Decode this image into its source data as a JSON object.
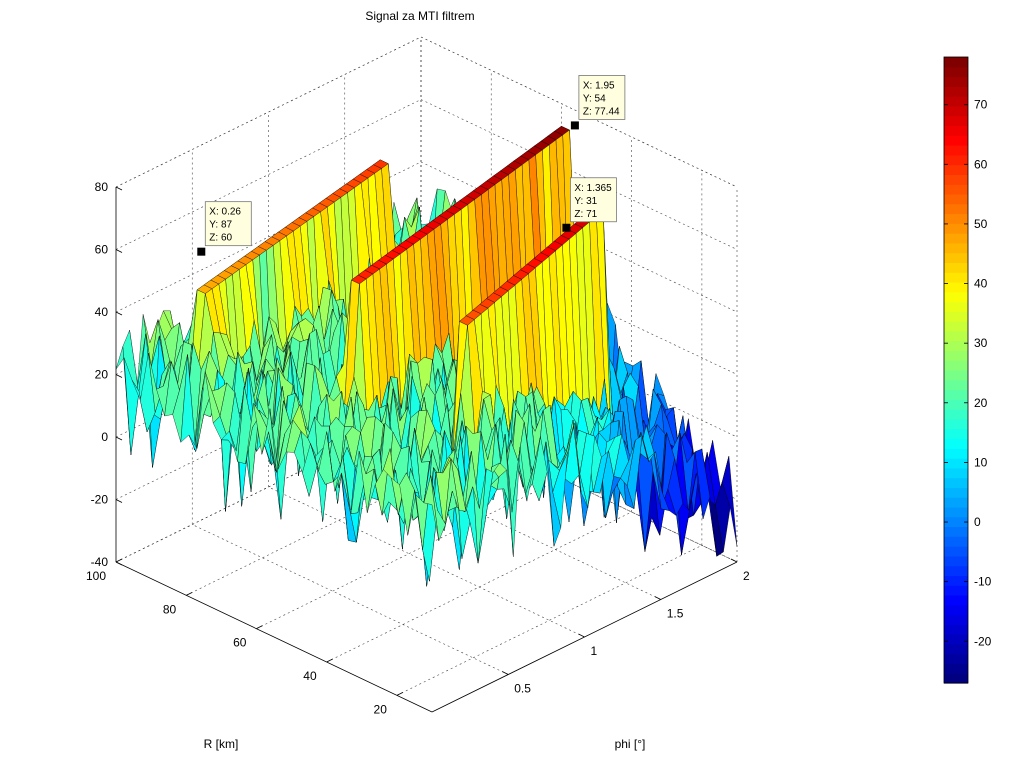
{
  "chart_data": {
    "type": "surface",
    "title": "Signal za MTI filtrem",
    "xlabel": "phi [°]",
    "ylabel": "R [km]",
    "zlabel": "",
    "xlim": [
      0,
      2
    ],
    "ylim": [
      10,
      100
    ],
    "zlim": [
      -40,
      80
    ],
    "xticks": [
      "0.5",
      "1",
      "1.5",
      "2"
    ],
    "yticks": [
      "20",
      "40",
      "60",
      "80",
      "100"
    ],
    "zticks": [
      "-40",
      "-20",
      "0",
      "20",
      "40",
      "60",
      "80"
    ],
    "grid": true,
    "colormap": "jet",
    "colorbar": {
      "range": [
        -27,
        78
      ],
      "ticks": [
        "-20",
        "-10",
        "0",
        "10",
        "20",
        "30",
        "40",
        "50",
        "60",
        "70"
      ]
    },
    "datatips": [
      {
        "x": "0.26",
        "y": "87",
        "z": "60",
        "label_x": "X: 0.26",
        "label_y": "Y: 87",
        "label_z": "Z: 60"
      },
      {
        "x": "1.95",
        "y": "54",
        "z": "77.44",
        "label_x": "X: 1.95",
        "label_y": "Y: 54",
        "label_z": "Z: 77.44"
      },
      {
        "x": "1.365",
        "y": "31",
        "z": "71",
        "label_x": "X: 1.365",
        "label_y": "Y: 31",
        "label_z": "Z: 71"
      }
    ],
    "ridges": [
      {
        "name": "",
        "x_start": 0.26,
        "x_end": 1.5,
        "y": 87,
        "z_peak": 60
      },
      {
        "name": "",
        "x_start": 0.5,
        "x_end": 1.95,
        "y": 54,
        "z_peak": 77.44
      },
      {
        "name": "",
        "x_start": 0.7,
        "x_end": 1.6,
        "y": 31,
        "z_peak": 71
      }
    ],
    "noise_floor": {
      "z_min": -35,
      "z_max": 40
    }
  }
}
